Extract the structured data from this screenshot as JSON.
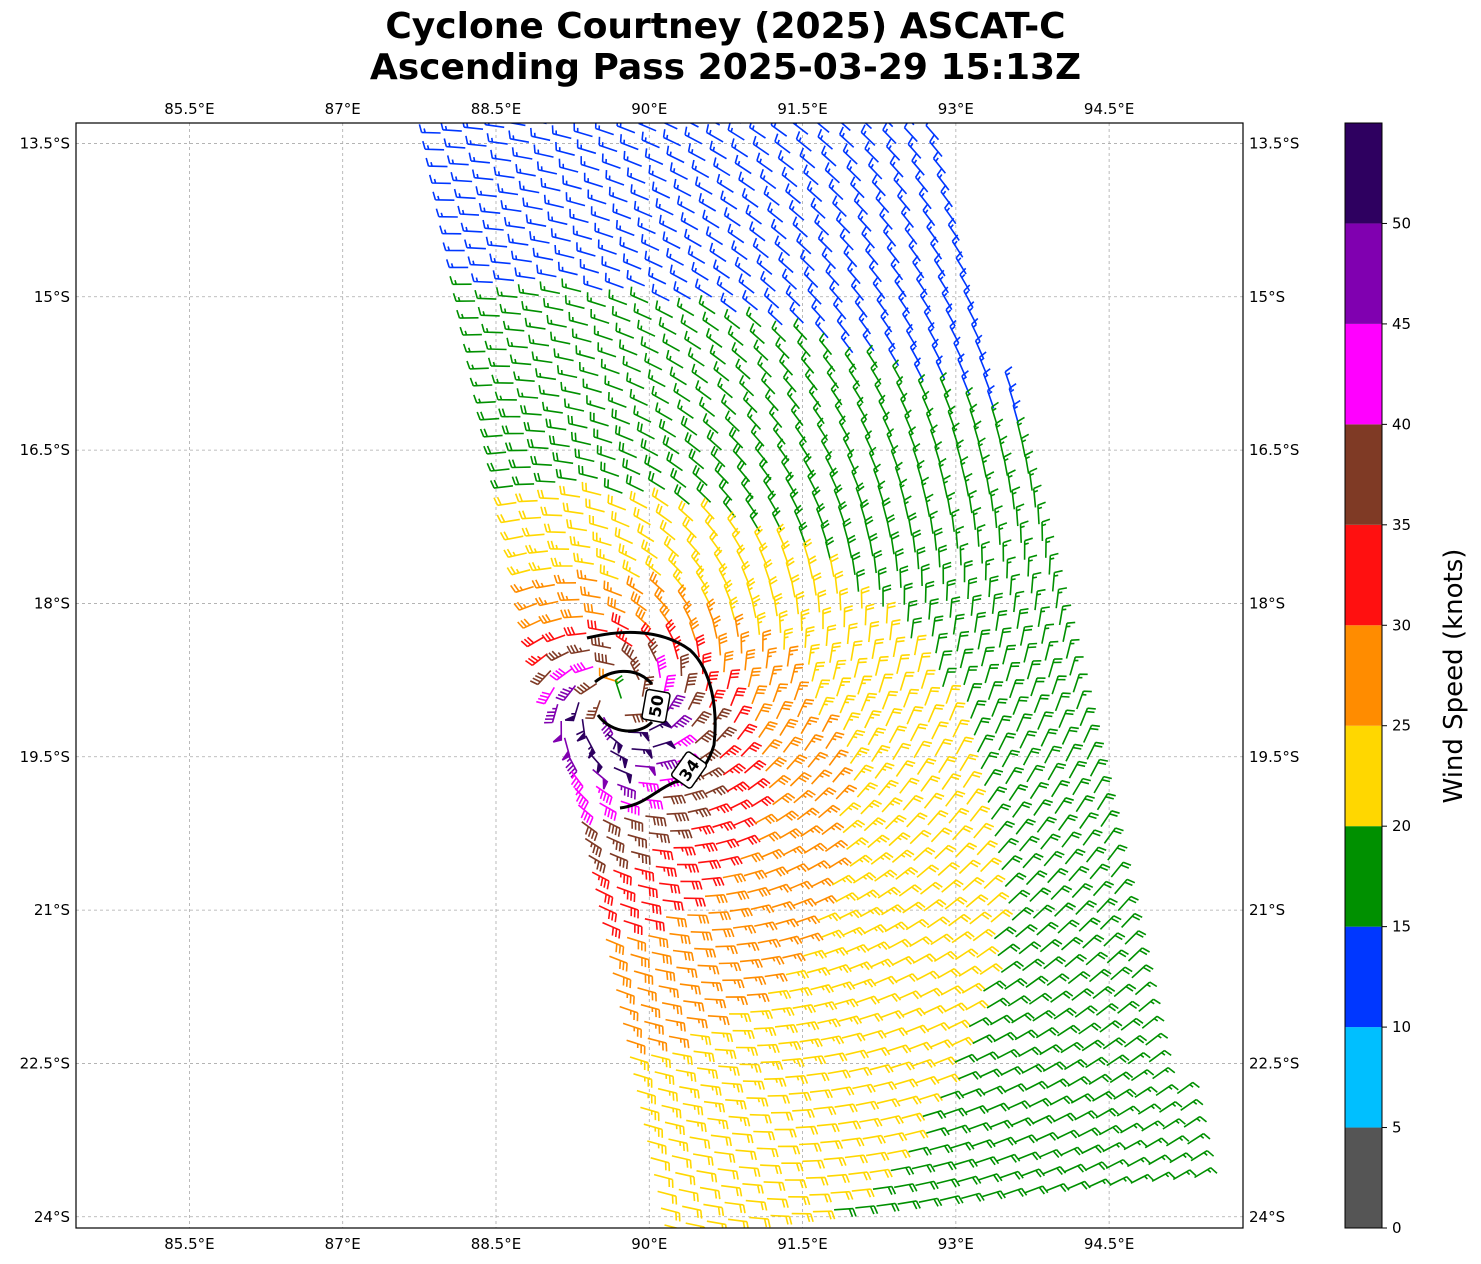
{
  "title_line1": "Cyclone Courtney (2025) ASCAT-C",
  "title_line2": "Ascending Pass 2025-03-29 15:13Z",
  "chart_data": {
    "type": "wind-barb map",
    "title": "Cyclone Courtney (2025) ASCAT-C Ascending Pass 2025-03-29 15:13Z",
    "extent": {
      "lon": [
        84.39,
        95.81
      ],
      "lat": [
        -24.11,
        -13.3
      ]
    },
    "lon_ticks": [
      85.5,
      87,
      88.5,
      90,
      91.5,
      93,
      94.5
    ],
    "lon_tick_labels": [
      "85.5°E",
      "87°E",
      "88.5°E",
      "90°E",
      "91.5°E",
      "93°E",
      "94.5°E"
    ],
    "lat_ticks": [
      -13.5,
      -15,
      -16.5,
      -18,
      -19.5,
      -21,
      -22.5,
      -24
    ],
    "lat_tick_labels": [
      "13.5°S",
      "15°S",
      "16.5°S",
      "18°S",
      "19.5°S",
      "21°S",
      "22.5°S",
      "24°S"
    ],
    "grid": true,
    "colorbar": {
      "label": "Wind Speed (knots)",
      "bounds": [
        0,
        5,
        10,
        15,
        20,
        25,
        30,
        35,
        40,
        45,
        50,
        55
      ],
      "tick_labels": [
        "0",
        "5",
        "10",
        "15",
        "20",
        "25",
        "30",
        "35",
        "40",
        "45",
        "50"
      ],
      "colors": [
        "#555555",
        "#00bfff",
        "#0037ff",
        "#009000",
        "#ffd700",
        "#ff8c00",
        "#ff1010",
        "#7f3a25",
        "#ff00ff",
        "#8000b0",
        "#2e0060"
      ],
      "placement": "right"
    },
    "contours": [
      {
        "level": 34,
        "label": "34"
      },
      {
        "level": 50,
        "label": "50"
      }
    ],
    "wind_field": {
      "center_lon": 89.7,
      "center_lat": -18.95,
      "max_wind_kt": 52,
      "rotation": "clockwise"
    }
  }
}
